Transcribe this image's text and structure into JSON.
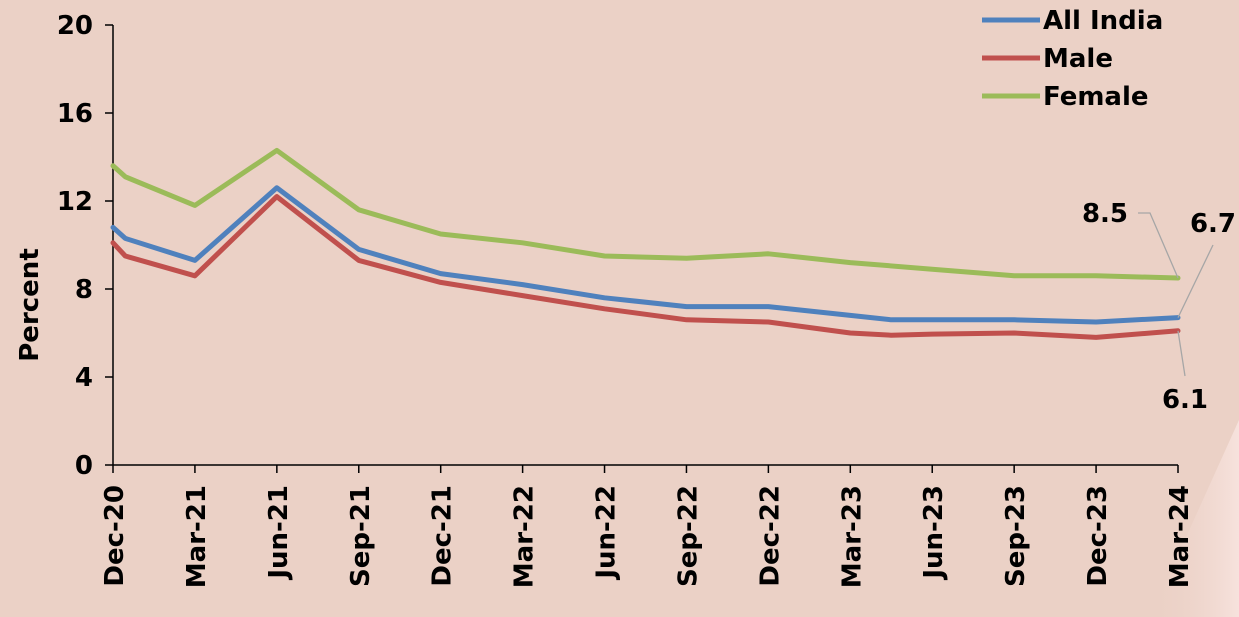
{
  "chart_data": {
    "type": "line",
    "ylabel": "Percent",
    "ylim": [
      0,
      20
    ],
    "yticks": [
      0,
      4,
      8,
      12,
      16,
      20
    ],
    "grid": false,
    "legend_position": "top-right",
    "categories": [
      "Dec-20",
      "Mar-21",
      "Jun-21",
      "Sep-21",
      "Dec-21",
      "Mar-22",
      "Jun-22",
      "Sep-22",
      "Dec-22",
      "Mar-23",
      "Jun-23",
      "Sep-23",
      "Dec-23",
      "Mar-24"
    ],
    "series": [
      {
        "name": "All India",
        "color": "#4f81bd",
        "points": [
          [
            0,
            10.8
          ],
          [
            0.15,
            10.3
          ],
          [
            1,
            9.3
          ],
          [
            2,
            12.6
          ],
          [
            3,
            9.8
          ],
          [
            4,
            8.7
          ],
          [
            5,
            8.2
          ],
          [
            6,
            7.6
          ],
          [
            7,
            7.2
          ],
          [
            8,
            7.2
          ],
          [
            9,
            6.8
          ],
          [
            9.5,
            6.6
          ],
          [
            10,
            6.6
          ],
          [
            11,
            6.6
          ],
          [
            12,
            6.5
          ],
          [
            13,
            6.7
          ]
        ]
      },
      {
        "name": "Male",
        "color": "#c0504d",
        "points": [
          [
            0,
            10.1
          ],
          [
            0.15,
            9.5
          ],
          [
            1,
            8.6
          ],
          [
            2,
            12.2
          ],
          [
            3,
            9.3
          ],
          [
            4,
            8.3
          ],
          [
            5,
            7.7
          ],
          [
            6,
            7.1
          ],
          [
            7,
            6.6
          ],
          [
            8,
            6.5
          ],
          [
            9,
            6.0
          ],
          [
            9.5,
            5.9
          ],
          [
            10,
            5.95
          ],
          [
            11,
            6.0
          ],
          [
            12,
            5.8
          ],
          [
            13,
            6.1
          ]
        ]
      },
      {
        "name": "Female",
        "color": "#9bbb59",
        "points": [
          [
            0,
            13.6
          ],
          [
            0.15,
            13.1
          ],
          [
            1,
            11.8
          ],
          [
            2,
            14.3
          ],
          [
            3,
            11.6
          ],
          [
            4,
            10.5
          ],
          [
            5,
            10.1
          ],
          [
            6,
            9.5
          ],
          [
            7,
            9.4
          ],
          [
            8,
            9.6
          ],
          [
            9,
            9.2
          ],
          [
            10,
            8.9
          ],
          [
            11,
            8.6
          ],
          [
            12,
            8.6
          ],
          [
            13,
            8.5
          ]
        ]
      }
    ],
    "annotations": [
      {
        "text": "8.5",
        "series": "Female"
      },
      {
        "text": "6.7",
        "series": "All India"
      },
      {
        "text": "6.1",
        "series": "Male"
      }
    ]
  }
}
